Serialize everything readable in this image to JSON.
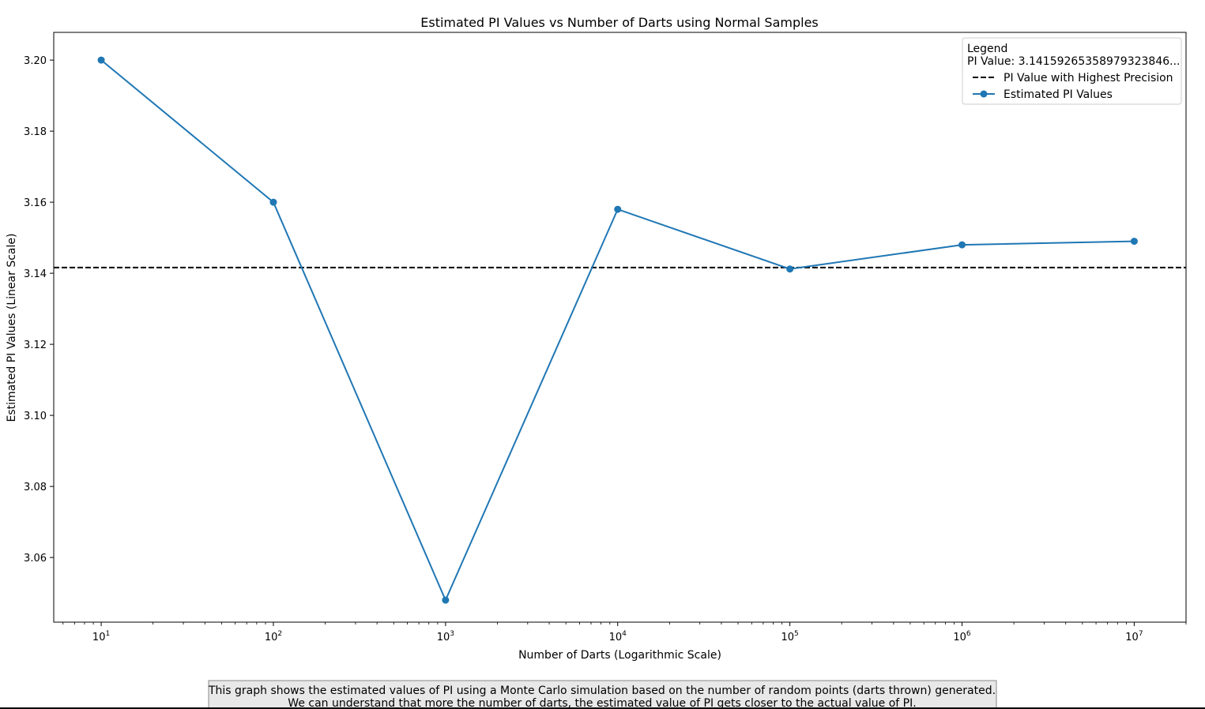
{
  "chart_data": {
    "type": "line",
    "title": "Estimated PI Values vs Number of Darts using Normal Samples",
    "xlabel": "Number of Darts (Logarithmic Scale)",
    "ylabel": "Estimated PI Values (Linear Scale)",
    "xscale": "log",
    "xlim": [
      5.3,
      20000000
    ],
    "ylim": [
      3.0418,
      3.2078
    ],
    "xticks": [
      10,
      100,
      1000,
      10000,
      100000,
      1000000,
      10000000
    ],
    "xtick_base": "10",
    "xtick_exponents": [
      "1",
      "2",
      "3",
      "4",
      "5",
      "6",
      "7"
    ],
    "yticks": [
      3.06,
      3.08,
      3.1,
      3.12,
      3.14,
      3.16,
      3.18,
      3.2
    ],
    "ytick_labels": [
      "3.06",
      "3.08",
      "3.10",
      "3.12",
      "3.14",
      "3.16",
      "3.18",
      "3.20"
    ],
    "grid": false,
    "series": [
      {
        "name": "Estimated PI Values",
        "color": "#1f77b4",
        "marker": "circle",
        "x": [
          10,
          100,
          1000,
          10000,
          100000,
          1000000,
          10000000
        ],
        "y": [
          3.2,
          3.16,
          3.048,
          3.158,
          3.1412,
          3.148,
          3.149
        ]
      }
    ],
    "reference_line": {
      "name": "PI Value with Highest Precision",
      "y": 3.141592653589793,
      "style": "dashed",
      "color": "#000000"
    },
    "legend": {
      "position": "top-right",
      "title": "Legend",
      "subtitle": "PI Value: 3.14159265358979323846...",
      "entries": [
        "PI Value with Highest Precision",
        "Estimated PI Values"
      ]
    },
    "caption": {
      "line1": "This graph shows the estimated values of PI using a Monte Carlo simulation based on the number of random points (darts thrown) generated.",
      "line2": "We can understand that more the number of darts, the estimated value of PI gets closer to the actual value of PI."
    }
  }
}
